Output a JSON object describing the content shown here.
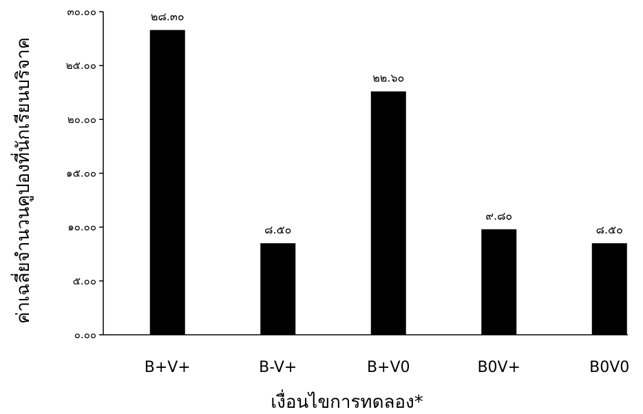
{
  "chart_data": {
    "type": "bar",
    "xlabel": "เงื่อนไขการทดลอง*",
    "ylabel": "ค่าเฉลี่ยจำนวนคูปองที่นักเรียนบริจาค",
    "categories": [
      "B+V+",
      "B-V+",
      "B+V0",
      "B0V+",
      "B0V0"
    ],
    "values": [
      28.3,
      8.5,
      22.6,
      9.8,
      8.5
    ],
    "data_labels": [
      "๒๘.๓๐",
      "๘.๕๐",
      "๒๒.๖๐",
      "๙.๘๐",
      "๘.๕๐"
    ],
    "ylim": [
      0,
      30
    ],
    "yticks": [
      0,
      5,
      10,
      15,
      20,
      25,
      30
    ],
    "ytick_labels": [
      "๐.๐๐",
      "๕.๐๐",
      "๑๐.๐๐",
      "๑๕.๐๐",
      "๒๐.๐๐",
      "๒๕.๐๐",
      "๓๐.๐๐"
    ],
    "bar_color": "#000000",
    "grid": false,
    "legend": "none"
  }
}
